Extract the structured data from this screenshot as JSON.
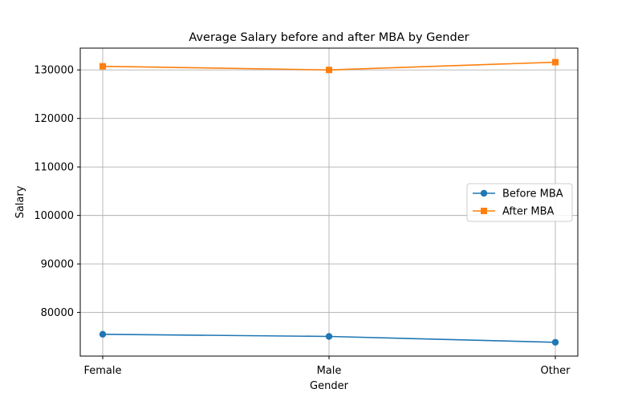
{
  "chart_data": {
    "type": "line",
    "title": "Average Salary before and after MBA by Gender",
    "xlabel": "Gender",
    "ylabel": "Salary",
    "categories": [
      "Female",
      "Male",
      "Other"
    ],
    "yticks": [
      80000,
      90000,
      100000,
      110000,
      120000,
      130000
    ],
    "ylim": [
      71000,
      134500
    ],
    "grid": true,
    "legend_position": "center-right",
    "series": [
      {
        "name": "Before MBA",
        "values": [
          75500,
          75050,
          73850
        ],
        "color": "#1f77b4",
        "marker": "circle"
      },
      {
        "name": "After MBA",
        "values": [
          130750,
          130000,
          131600
        ],
        "color": "#ff7f0e",
        "marker": "square"
      }
    ]
  }
}
